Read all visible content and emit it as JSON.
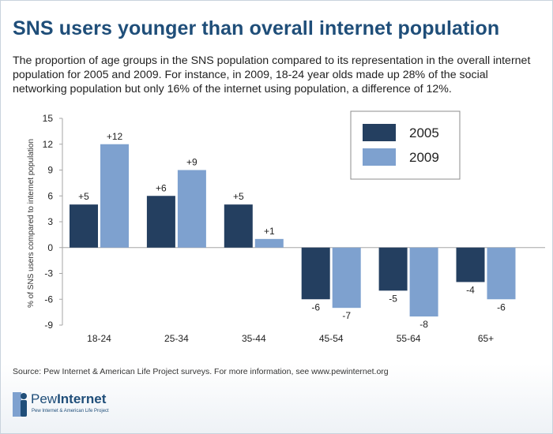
{
  "header": {
    "title": "SNS users younger than overall internet population",
    "subtitle": "The proportion of age groups in the SNS population compared to its representation in the overall internet population for 2005 and 2009. For instance, in 2009, 18-24 year olds made up 28% of the social networking population but only 16% of the internet using population, a difference of 12%."
  },
  "footer": {
    "source": "Source: Pew Internet & American Life Project surveys. For more information, see www.pewinternet.org",
    "logo_word_light": "Pew",
    "logo_word_bold": "Internet",
    "logo_tagline": "Pew Internet & American Life Project"
  },
  "colors": {
    "series_2005": "#243f60",
    "series_2009": "#7ea1cf",
    "title": "#1f4e79"
  },
  "chart_data": {
    "type": "bar",
    "title": "SNS users younger than overall internet population",
    "xlabel": "",
    "ylabel": "% of SNS users compared to internet population",
    "ylim": [
      -9,
      15
    ],
    "yticks": [
      15,
      12,
      9,
      6,
      3,
      0,
      -3,
      -6,
      -9
    ],
    "categories": [
      "18-24",
      "25-34",
      "35-44",
      "45-54",
      "55-64",
      "65+"
    ],
    "series": [
      {
        "name": "2005",
        "values": [
          5,
          6,
          5,
          -6,
          -5,
          -4
        ],
        "labels": [
          "+5",
          "+6",
          "+5",
          "-6",
          "-5",
          "-4"
        ]
      },
      {
        "name": "2009",
        "values": [
          12,
          9,
          1,
          -7,
          -8,
          -6
        ],
        "labels": [
          "+12",
          "+9",
          "+1",
          "-7",
          "-8",
          "-6"
        ]
      }
    ],
    "legend": "top-right"
  }
}
